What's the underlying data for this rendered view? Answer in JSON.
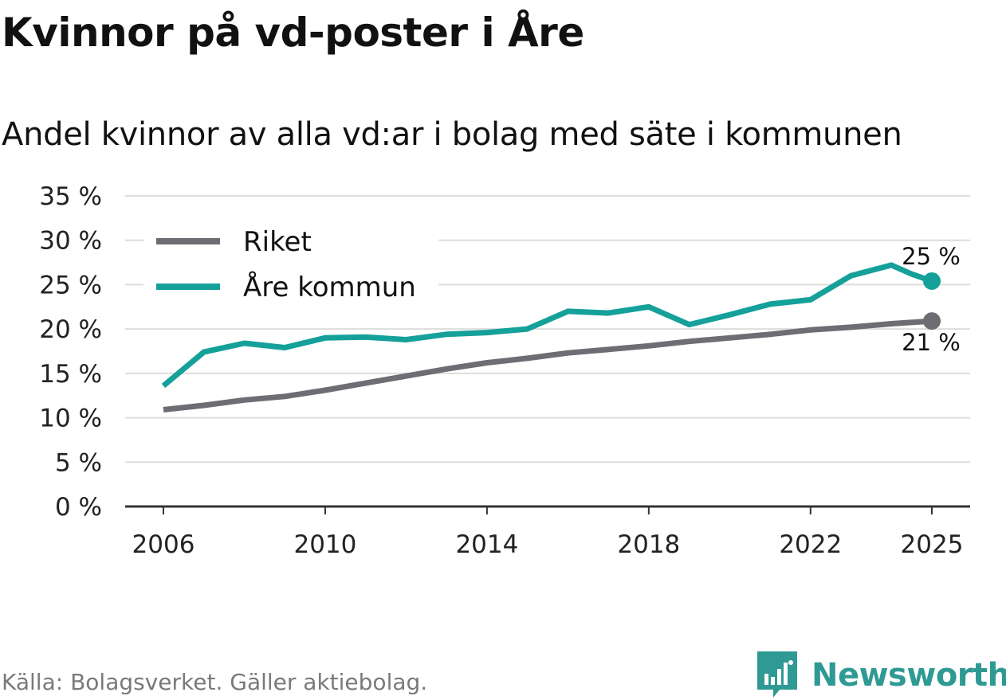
{
  "title": "Kvinnor på vd-poster i Åre",
  "subtitle": "Andel kvinnor av alla vd:ar i bolag med säte i kommunen",
  "source": "Källa: Bolagsverket. Gäller aktiebolag.",
  "brand": {
    "name": "Newsworthy",
    "color": "#2f9a94"
  },
  "chart_data": {
    "type": "line",
    "title": "Kvinnor på vd-poster i Åre",
    "subtitle": "Andel kvinnor av alla vd:ar i bolag med säte i kommunen",
    "xlabel": "",
    "ylabel": "",
    "ylim": [
      0,
      35
    ],
    "xlim": [
      2006,
      2025
    ],
    "grid": true,
    "legend_position": "top-left",
    "y_ticks": [
      {
        "value": 0,
        "label": "0 %"
      },
      {
        "value": 5,
        "label": "5 %"
      },
      {
        "value": 10,
        "label": "10 %"
      },
      {
        "value": 15,
        "label": "15 %"
      },
      {
        "value": 20,
        "label": "20 %"
      },
      {
        "value": 25,
        "label": "25 %"
      },
      {
        "value": 30,
        "label": "30 %"
      },
      {
        "value": 35,
        "label": "35 %"
      }
    ],
    "x_ticks": [
      {
        "value": 2006,
        "label": "2006"
      },
      {
        "value": 2010,
        "label": "2010"
      },
      {
        "value": 2014,
        "label": "2014"
      },
      {
        "value": 2018,
        "label": "2018"
      },
      {
        "value": 2022,
        "label": "2022"
      },
      {
        "value": 2025,
        "label": "2025"
      }
    ],
    "series": [
      {
        "name": "Riket",
        "color": "#6e6d74",
        "end_label": "21 %",
        "end_label_position": "below",
        "points": [
          [
            2006,
            10.9
          ],
          [
            2007,
            11.4
          ],
          [
            2008,
            12.0
          ],
          [
            2009,
            12.4
          ],
          [
            2010,
            13.1
          ],
          [
            2011,
            13.9
          ],
          [
            2012,
            14.7
          ],
          [
            2013,
            15.5
          ],
          [
            2014,
            16.2
          ],
          [
            2015,
            16.7
          ],
          [
            2016,
            17.3
          ],
          [
            2017,
            17.7
          ],
          [
            2018,
            18.1
          ],
          [
            2019,
            18.6
          ],
          [
            2020,
            19.0
          ],
          [
            2021,
            19.4
          ],
          [
            2022,
            19.9
          ],
          [
            2023,
            20.2
          ],
          [
            2024,
            20.6
          ],
          [
            2025,
            20.9
          ]
        ]
      },
      {
        "name": "Åre kommun",
        "color": "#15a09a",
        "end_label": "25 %",
        "end_label_position": "above",
        "points": [
          [
            2006,
            13.6
          ],
          [
            2007,
            17.4
          ],
          [
            2008,
            18.4
          ],
          [
            2009,
            17.9
          ],
          [
            2010,
            19.0
          ],
          [
            2011,
            19.1
          ],
          [
            2012,
            18.8
          ],
          [
            2013,
            19.4
          ],
          [
            2014,
            19.6
          ],
          [
            2015,
            20.0
          ],
          [
            2016,
            22.0
          ],
          [
            2017,
            21.8
          ],
          [
            2018,
            22.5
          ],
          [
            2019,
            20.5
          ],
          [
            2020,
            21.6
          ],
          [
            2021,
            22.8
          ],
          [
            2022,
            23.3
          ],
          [
            2023,
            26.0
          ],
          [
            2024,
            27.2
          ],
          [
            2024.5,
            26.2
          ],
          [
            2025,
            25.4
          ]
        ]
      }
    ]
  }
}
